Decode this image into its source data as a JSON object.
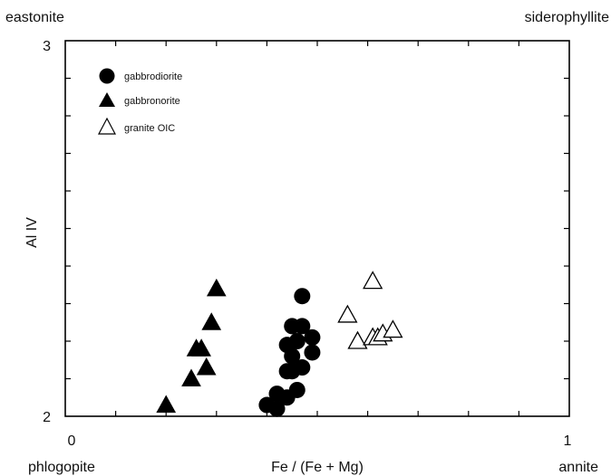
{
  "chart_data": {
    "type": "scatter",
    "title": "",
    "xlabel": "Fe / (Fe + Mg)",
    "ylabel": "Al IV",
    "xlim": [
      0,
      1
    ],
    "ylim": [
      2,
      3
    ],
    "x_ticks": [
      "0",
      "1"
    ],
    "y_ticks": [
      "2",
      "3"
    ],
    "minor_x_ticks": [
      0.1,
      0.2,
      0.3,
      0.4,
      0.5,
      0.6,
      0.7,
      0.8,
      0.9
    ],
    "minor_y_ticks": [
      2.1,
      2.2,
      2.3,
      2.4,
      2.5,
      2.6,
      2.7,
      2.8,
      2.9
    ],
    "grid": false,
    "legend_placement": "top-left",
    "corner_labels": {
      "top_left": "eastonite",
      "top_right": "siderophyllite",
      "bottom_left": "phlogopite",
      "bottom_right": "annite"
    },
    "series": [
      {
        "name": "gabbrodiorite",
        "marker": "filled-circle",
        "color": "#000000",
        "points": [
          [
            0.47,
            2.32
          ],
          [
            0.45,
            2.24
          ],
          [
            0.47,
            2.24
          ],
          [
            0.49,
            2.21
          ],
          [
            0.44,
            2.19
          ],
          [
            0.46,
            2.2
          ],
          [
            0.49,
            2.17
          ],
          [
            0.45,
            2.16
          ],
          [
            0.47,
            2.13
          ],
          [
            0.44,
            2.12
          ],
          [
            0.45,
            2.12
          ],
          [
            0.46,
            2.07
          ],
          [
            0.42,
            2.06
          ],
          [
            0.44,
            2.05
          ],
          [
            0.4,
            2.03
          ],
          [
            0.42,
            2.02
          ]
        ]
      },
      {
        "name": "gabbronorite",
        "marker": "filled-triangle",
        "color": "#000000",
        "points": [
          [
            0.3,
            2.34
          ],
          [
            0.29,
            2.25
          ],
          [
            0.27,
            2.18
          ],
          [
            0.26,
            2.18
          ],
          [
            0.28,
            2.13
          ],
          [
            0.25,
            2.1
          ],
          [
            0.2,
            2.03
          ]
        ]
      },
      {
        "name": "granite OIC",
        "marker": "open-triangle",
        "color": "#000000",
        "points": [
          [
            0.61,
            2.36
          ],
          [
            0.56,
            2.27
          ],
          [
            0.58,
            2.2
          ],
          [
            0.61,
            2.21
          ],
          [
            0.62,
            2.21
          ],
          [
            0.63,
            2.22
          ],
          [
            0.65,
            2.23
          ]
        ]
      }
    ]
  }
}
